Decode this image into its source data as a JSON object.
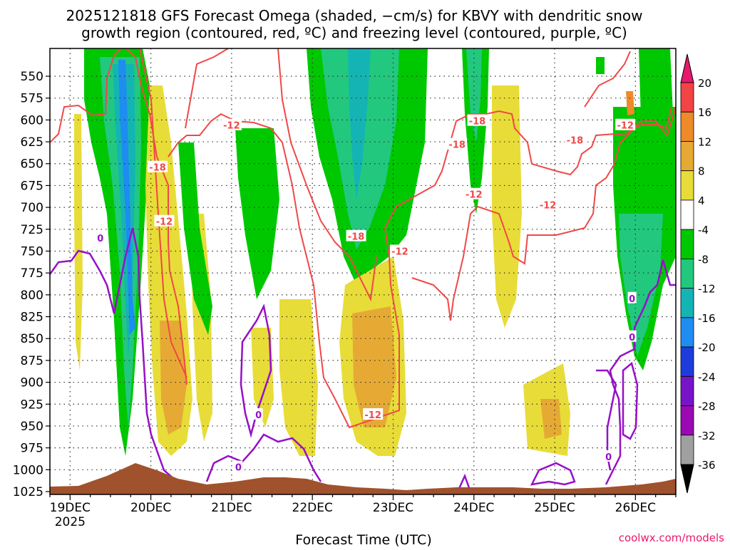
{
  "chart_data": {
    "type": "heatmap",
    "title_line1": "2025121818 GFS Forecast Omega (shaded, −cm/s) for KBVY with dendritic snow",
    "title_line2": "growth region (contoured, red, ºC) and freezing level (contoured, purple, ºC)",
    "xlabel": "Forecast Time (UTC)",
    "credit": "coolwx.com/models",
    "x_range_hours": [
      -6,
      180
    ],
    "x_ticks": [
      {
        "hour": 0,
        "label": "19DEC",
        "sub": "2025"
      },
      {
        "hour": 24,
        "label": "20DEC"
      },
      {
        "hour": 48,
        "label": "21DEC"
      },
      {
        "hour": 72,
        "label": "22DEC"
      },
      {
        "hour": 96,
        "label": "23DEC"
      },
      {
        "hour": 120,
        "label": "24DEC"
      },
      {
        "hour": 144,
        "label": "25DEC"
      },
      {
        "hour": 168,
        "label": "26DEC"
      }
    ],
    "y_ticks_hpa": [
      550,
      575,
      600,
      625,
      650,
      675,
      700,
      725,
      750,
      775,
      800,
      825,
      850,
      875,
      900,
      925,
      950,
      975,
      1000,
      1025
    ],
    "colorbar": {
      "levels": [
        -36,
        -32,
        -28,
        -24,
        -20,
        -16,
        -12,
        -8,
        -4,
        4,
        8,
        12,
        16,
        20
      ],
      "labels": [
        "20",
        "16",
        "12",
        "8",
        "4",
        "-4",
        "-8",
        "-12",
        "-16",
        "-20",
        "-24",
        "-28",
        "-32",
        "-36"
      ],
      "colors_top_to_bottom": [
        "#e8186e",
        "#f24444",
        "#ee8a2a",
        "#e6aa34",
        "#e8dc38",
        "#ffffff",
        "#00c800",
        "#22c87e",
        "#14b4b4",
        "#1e8cf0",
        "#1e3cdc",
        "#7814c8",
        "#9a0ab4",
        "#a0a0a0",
        "#000000"
      ]
    },
    "contours": {
      "red_labels": [
        {
          "text": "-12",
          "hour": 48,
          "hpa": 606
        },
        {
          "text": "-18",
          "hour": 26,
          "hpa": 654
        },
        {
          "text": "-12",
          "hour": 28,
          "hpa": 716
        },
        {
          "text": "-18",
          "hour": 85,
          "hpa": 733
        },
        {
          "text": "-12",
          "hour": 98,
          "hpa": 750
        },
        {
          "text": "-18",
          "hour": 115,
          "hpa": 628
        },
        {
          "text": "-18",
          "hour": 121,
          "hpa": 601
        },
        {
          "text": "-12",
          "hour": 120,
          "hpa": 685
        },
        {
          "text": "-12",
          "hour": 142,
          "hpa": 697
        },
        {
          "text": "-18",
          "hour": 150,
          "hpa": 623
        },
        {
          "text": "-12",
          "hour": 165,
          "hpa": 606
        },
        {
          "text": "-12",
          "hour": 90,
          "hpa": 937
        }
      ],
      "purple_labels": [
        {
          "text": "0",
          "hour": 9,
          "hpa": 735
        },
        {
          "text": "0",
          "hour": 56,
          "hpa": 937
        },
        {
          "text": "0",
          "hour": 50,
          "hpa": 997
        },
        {
          "text": "0",
          "hour": 160,
          "hpa": 985
        },
        {
          "text": "0",
          "hour": 167,
          "hpa": 804
        },
        {
          "text": "0",
          "hour": 167,
          "hpa": 848
        }
      ]
    }
  }
}
